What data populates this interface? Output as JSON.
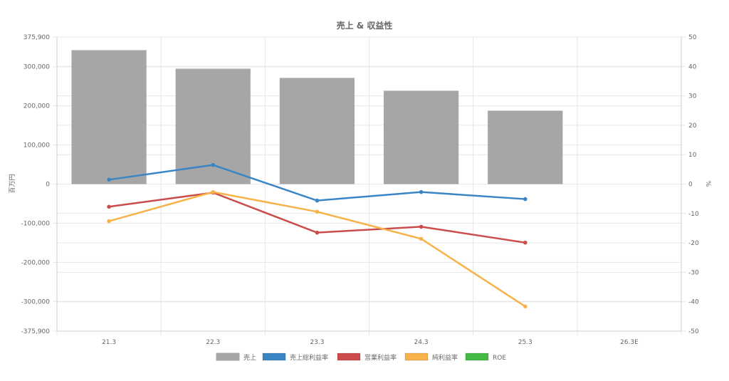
{
  "chart_data": {
    "type": "bar+line",
    "title": "売上 & 収益性",
    "categories": [
      "21.3",
      "22.3",
      "23.3",
      "24.3",
      "25.3",
      "26.3E"
    ],
    "y_left": {
      "label": "百万円",
      "range": [
        -375900,
        375900
      ],
      "ticks": [
        375900,
        300000,
        200000,
        100000,
        0,
        -100000,
        -200000,
        -300000,
        -375900
      ],
      "tick_labels": [
        "375,900",
        "300,000",
        "200,000",
        "100,000",
        "0",
        "-100,000",
        "-200,000",
        "-300,000",
        "-375,900"
      ]
    },
    "y_right": {
      "label": "%",
      "range": [
        -50,
        50
      ],
      "ticks": [
        50,
        40,
        30,
        20,
        10,
        0,
        -10,
        -20,
        -30,
        -40,
        -50
      ]
    },
    "grid": true,
    "legend_position": "bottom",
    "series": [
      {
        "name": "売上",
        "type": "bar",
        "axis": "left",
        "color": "#a6a6a6",
        "values": [
          342400,
          295000,
          271400,
          238600,
          187600,
          null
        ]
      },
      {
        "name": "売上総利益率",
        "type": "line",
        "axis": "right",
        "color": "#3a85c6",
        "values": [
          1.5,
          6.5,
          -5.6,
          -2.7,
          -5.1,
          null
        ]
      },
      {
        "name": "営業利益率",
        "type": "line",
        "axis": "right",
        "color": "#cc4c4c",
        "values": [
          -7.7,
          -2.9,
          -16.5,
          -14.5,
          -19.9,
          null
        ]
      },
      {
        "name": "純利益率",
        "type": "line",
        "axis": "right",
        "color": "#f7b24a",
        "values": [
          -12.6,
          -2.7,
          -9.4,
          -18.6,
          -41.6,
          null
        ]
      },
      {
        "name": "ROE",
        "type": "line",
        "axis": "right",
        "color": "#44b944",
        "values": [
          null,
          null,
          null,
          null,
          null,
          null
        ]
      }
    ]
  }
}
